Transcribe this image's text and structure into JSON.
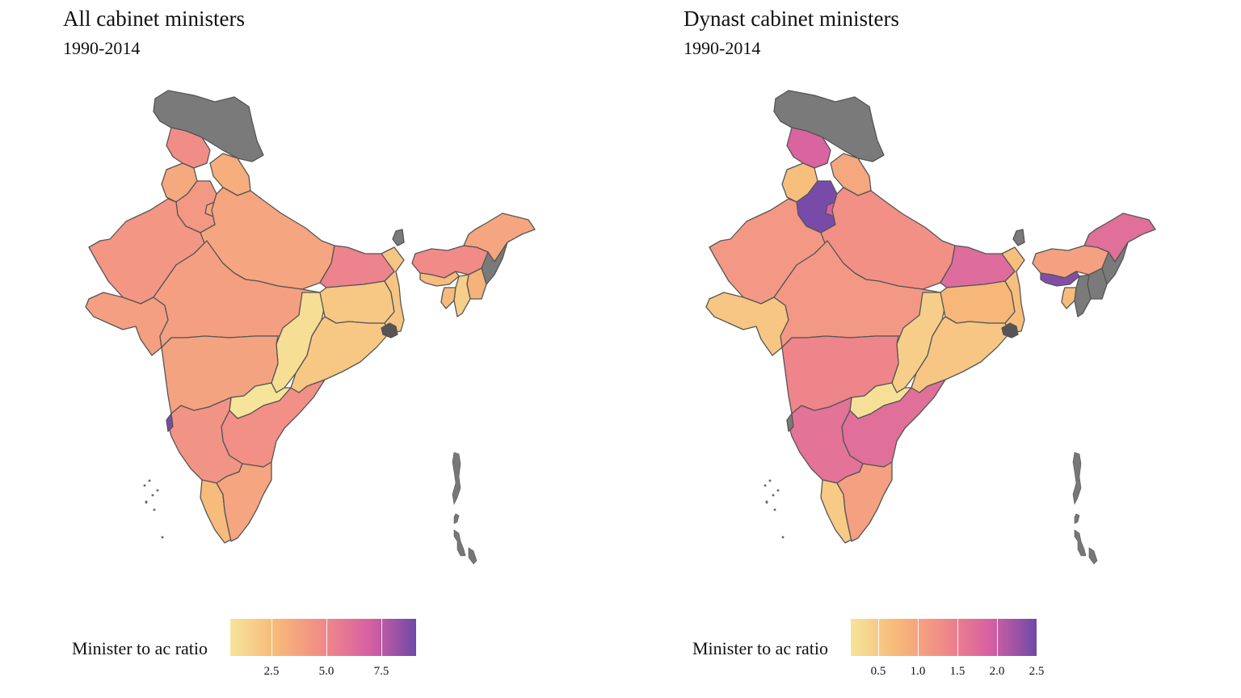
{
  "colors": {
    "no_data": "#7a7a7a",
    "border": "#555555",
    "gradient": [
      "#f6e49a",
      "#f7b879",
      "#f18a88",
      "#d760a3",
      "#6f49a8"
    ]
  },
  "panels": [
    {
      "title": "All cabinet ministers",
      "subtitle": "1990-2014",
      "legend": {
        "title": "Minister to ac ratio",
        "min": 0.6,
        "max": 9.1,
        "ticks": [
          {
            "value": 2.5,
            "label": "2.5"
          },
          {
            "value": 5.0,
            "label": "5.0"
          },
          {
            "value": 7.5,
            "label": "7.5"
          }
        ]
      },
      "regions": {
        "jk": null,
        "hp": 4.7,
        "pb": 3.4,
        "uk": 3.2,
        "hr": 4.2,
        "dl": 3.6,
        "rj": 4.3,
        "up": 3.6,
        "br": 5.2,
        "gj": 3.9,
        "mp": 3.9,
        "cg": 0.9,
        "jh": 2.0,
        "wb": 2.1,
        "od": 2.0,
        "mh": 3.7,
        "tg": 0.6,
        "ap": 4.6,
        "ka": 4.4,
        "goa": 8.9,
        "kl": 2.6,
        "tn": 3.6,
        "sk": null,
        "as": 4.8,
        "ar": 3.6,
        "nl": null,
        "mn": 3.0,
        "mz": 1.6,
        "tr": 2.6,
        "ml": 2.5
      }
    },
    {
      "title": "Dynast cabinet ministers",
      "subtitle": "1990-2014",
      "legend": {
        "title": "Minister to ac ratio",
        "min": 0.15,
        "max": 2.5,
        "ticks": [
          {
            "value": 0.5,
            "label": "0.5"
          },
          {
            "value": 1.0,
            "label": "1.0"
          },
          {
            "value": 1.5,
            "label": "1.5"
          },
          {
            "value": 2.0,
            "label": "2.0"
          },
          {
            "value": 2.5,
            "label": "2.5"
          }
        ]
      },
      "regions": {
        "jk": null,
        "hp": 1.85,
        "pb": 0.65,
        "uk": 0.95,
        "hr": 2.45,
        "dl": 1.9,
        "rj": 1.15,
        "up": 1.25,
        "br": 1.75,
        "gj": 0.55,
        "mp": 1.15,
        "cg": 0.45,
        "jh": 0.75,
        "wb": 0.65,
        "od": 0.55,
        "mh": 1.4,
        "tg": 0.2,
        "ap": 1.7,
        "ka": 1.65,
        "goa": null,
        "kl": 0.5,
        "tn": 1.05,
        "sk": null,
        "as": 1.05,
        "ar": 1.7,
        "nl": null,
        "mn": null,
        "mz": null,
        "tr": 0.7,
        "ml": 2.4
      }
    }
  ]
}
